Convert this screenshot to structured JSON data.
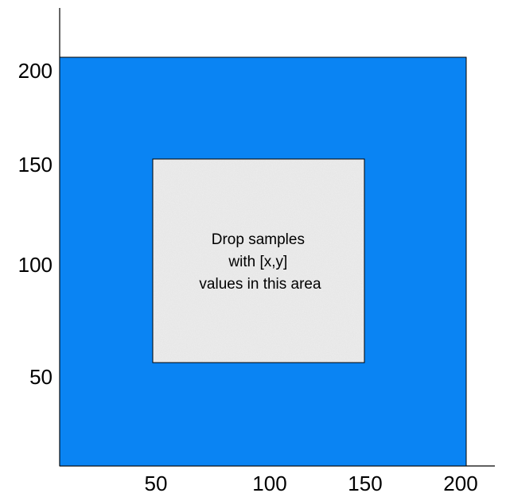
{
  "axes": {
    "x_ticks": [
      "50",
      "100",
      "150",
      "200"
    ],
    "y_ticks": [
      "50",
      "100",
      "150",
      "200"
    ]
  },
  "outer_region": {
    "x_range": [
      0,
      200
    ],
    "y_range": [
      0,
      200
    ],
    "color": "#0a84f3"
  },
  "drop_zone": {
    "x_range": [
      45,
      150
    ],
    "y_range": [
      50,
      150
    ],
    "color": "#eeeeee",
    "label_lines": [
      "Drop samples",
      "with [x,y]",
      "values in this area"
    ]
  }
}
